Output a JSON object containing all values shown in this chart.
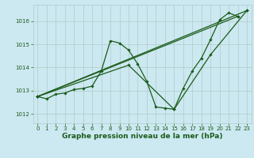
{
  "background_color": "#cce8f0",
  "grid_color": "#b0cccc",
  "line_color": "#1a5c1a",
  "line_width": 0.9,
  "marker": "D",
  "marker_size": 1.8,
  "xlabel": "Graphe pression niveau de la mer (hPa)",
  "xlabel_fontsize": 6.5,
  "xlabel_color": "#1a5c1a",
  "tick_fontsize": 5.0,
  "tick_color": "#1a5c1a",
  "xlim": [
    -0.5,
    23.5
  ],
  "ylim": [
    1011.6,
    1016.7
  ],
  "yticks": [
    1012,
    1013,
    1014,
    1015,
    1016
  ],
  "xticks": [
    0,
    1,
    2,
    3,
    4,
    5,
    6,
    7,
    8,
    9,
    10,
    11,
    12,
    13,
    14,
    15,
    16,
    17,
    18,
    19,
    20,
    21,
    22,
    23
  ],
  "main_x": [
    0,
    1,
    2,
    3,
    4,
    5,
    6,
    7,
    8,
    9,
    10,
    11,
    12,
    13,
    14,
    15,
    16,
    17,
    18,
    19,
    20,
    21,
    22
  ],
  "main_y": [
    1012.75,
    1012.65,
    1012.85,
    1012.9,
    1013.05,
    1013.1,
    1013.2,
    1013.85,
    1015.15,
    1015.05,
    1014.75,
    1014.15,
    1013.4,
    1012.3,
    1012.25,
    1012.2,
    1013.1,
    1013.85,
    1014.4,
    1015.2,
    1016.05,
    1016.35,
    1016.2
  ],
  "line2_x": [
    0,
    22
  ],
  "line2_y": [
    1012.75,
    1016.2
  ],
  "line3_x": [
    0,
    23
  ],
  "line3_y": [
    1012.75,
    1016.45
  ],
  "line4_x": [
    0,
    10,
    15,
    19,
    23
  ],
  "line4_y": [
    1012.75,
    1014.1,
    1012.2,
    1014.55,
    1016.45
  ]
}
